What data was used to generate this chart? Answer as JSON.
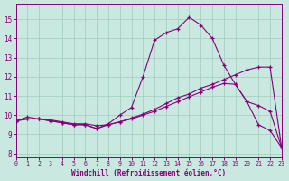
{
  "bg_color": "#c8e8e0",
  "line_color": "#880077",
  "grid_color": "#a0ccbb",
  "xlabel": "Windchill (Refroidissement éolien,°C)",
  "xlim": [
    0,
    23
  ],
  "ylim": [
    7.8,
    15.8
  ],
  "yticks": [
    8,
    9,
    10,
    11,
    12,
    13,
    14,
    15
  ],
  "xticks": [
    0,
    1,
    2,
    3,
    4,
    5,
    6,
    7,
    8,
    9,
    10,
    11,
    12,
    13,
    14,
    15,
    16,
    17,
    18,
    19,
    20,
    21,
    22,
    23
  ],
  "series1_x": [
    0,
    1,
    2,
    3,
    4,
    5,
    6,
    7,
    8,
    9,
    10,
    11,
    12,
    13,
    14,
    15,
    16,
    17,
    18,
    19,
    20,
    21,
    22,
    23
  ],
  "series1_y": [
    9.7,
    9.9,
    9.8,
    9.7,
    9.6,
    9.5,
    9.5,
    9.3,
    9.55,
    10.0,
    10.4,
    12.0,
    13.9,
    14.3,
    14.5,
    15.1,
    14.7,
    14.0,
    12.6,
    11.6,
    10.7,
    10.5,
    10.2,
    8.3
  ],
  "series2_x": [
    0,
    1,
    2,
    3,
    4,
    5,
    6,
    7,
    8,
    9,
    10,
    11,
    12,
    13,
    14,
    15,
    16,
    17,
    18,
    19,
    20,
    21,
    22,
    23
  ],
  "series2_y": [
    9.7,
    9.8,
    9.8,
    9.75,
    9.65,
    9.55,
    9.55,
    9.45,
    9.5,
    9.65,
    9.85,
    10.05,
    10.3,
    10.6,
    10.9,
    11.1,
    11.4,
    11.6,
    11.85,
    12.1,
    12.35,
    12.5,
    12.5,
    8.3
  ],
  "series3_x": [
    0,
    1,
    2,
    3,
    4,
    5,
    6,
    7,
    8,
    9,
    10,
    11,
    12,
    13,
    14,
    15,
    16,
    17,
    18,
    19,
    20,
    21,
    22,
    23
  ],
  "series3_y": [
    9.7,
    9.8,
    9.8,
    9.7,
    9.6,
    9.5,
    9.5,
    9.3,
    9.5,
    9.65,
    9.8,
    10.0,
    10.2,
    10.45,
    10.7,
    10.95,
    11.2,
    11.45,
    11.65,
    11.6,
    10.7,
    9.5,
    9.2,
    8.3
  ]
}
